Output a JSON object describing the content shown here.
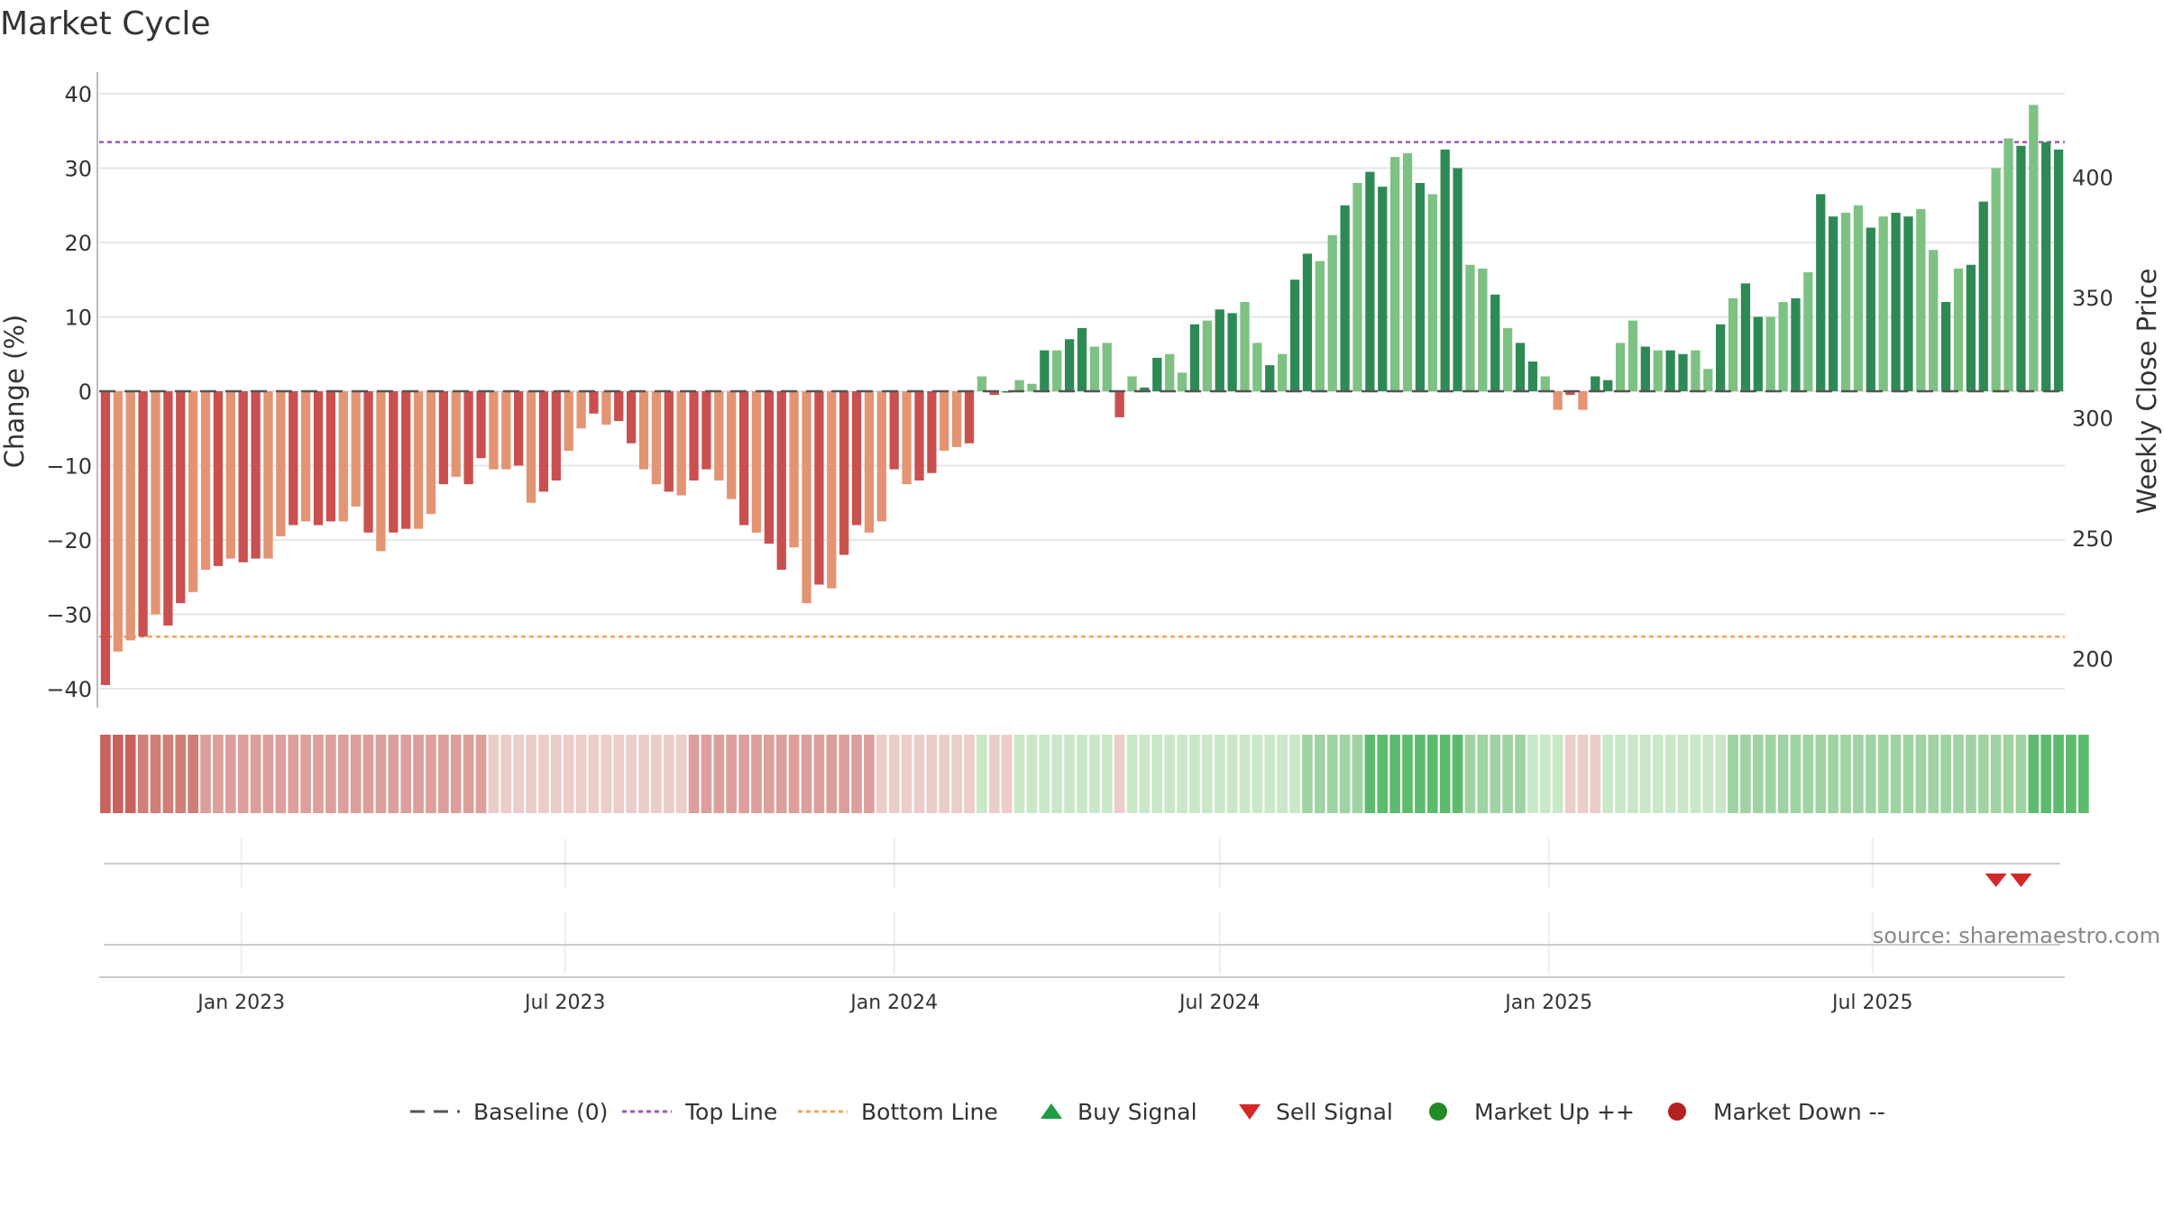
{
  "title": "Market Cycle",
  "source": "source: sharemaestro.com",
  "chart_data": {
    "type": "bar",
    "y_left_label": "Change (%)",
    "y_right_label": "Weekly Close Price",
    "y_left_ticks": [
      "40",
      "30",
      "20",
      "10",
      "0",
      "−10",
      "−20",
      "−30",
      "−40"
    ],
    "y_right_ticks": [
      "400",
      "350",
      "300",
      "250",
      "200"
    ],
    "x_ticks": [
      "Jan 2023",
      "Jul 2023",
      "Jan 2024",
      "Jul 2024",
      "Jan 2025",
      "Jul 2025"
    ],
    "ylim_left": [
      -41.5,
      42.5
    ],
    "ylim_right": [
      170,
      425
    ],
    "top_line": 33.5,
    "bottom_line": -33.0,
    "baseline": 0,
    "x_start": "2022-10-17",
    "x_step_days": 7,
    "values": [
      -39.5,
      -35,
      -33.5,
      -33,
      -30,
      -31.5,
      -28.5,
      -27,
      -24,
      -23.5,
      -22.5,
      -23,
      -22.5,
      -22.5,
      -19.5,
      -18,
      -17.5,
      -18,
      -17.5,
      -17.5,
      -15.5,
      -19,
      -21.5,
      -19,
      -18.5,
      -18.5,
      -16.5,
      -12.5,
      -11.5,
      -12.5,
      -9,
      -10.5,
      -10.5,
      -10,
      -15,
      -13.5,
      -12,
      -8,
      -5,
      -3,
      -4.5,
      -4,
      -7,
      -10.5,
      -12.5,
      -13.5,
      -14,
      -12,
      -10.5,
      -12,
      -14.5,
      -18,
      -19,
      -20.5,
      -24,
      -21,
      -28.5,
      -26,
      -26.5,
      -22,
      -18,
      -19,
      -17.5,
      -10.5,
      -12.5,
      -12,
      -11,
      -8,
      -7.5,
      -7,
      2,
      -0.5,
      0,
      1.5,
      1,
      5.5,
      5.5,
      7,
      8.5,
      6,
      6.5,
      -3.5,
      2,
      0.5,
      4.5,
      5,
      2.5,
      9,
      9.5,
      11,
      10.5,
      12,
      6.5,
      3.5,
      5,
      15,
      18.5,
      17.5,
      21,
      25,
      28,
      29.5,
      27.5,
      31.5,
      32,
      28,
      26.5,
      32.5,
      30,
      17,
      16.5,
      13,
      8.5,
      6.5,
      4,
      2,
      -2.5,
      -0.5,
      -2.5,
      2,
      1.5,
      6.5,
      9.5,
      6,
      5.5,
      5.5,
      5,
      5.5,
      3,
      9,
      12.5,
      14.5,
      10,
      10,
      12,
      12.5,
      16,
      26.5,
      23.5,
      24,
      25,
      22,
      23.5,
      24,
      23.5,
      24.5,
      19,
      12,
      16.5,
      17,
      25.5,
      30,
      34,
      33,
      38.5,
      33.5,
      32.5
    ],
    "ratings": [
      -4,
      -4,
      -4,
      -3,
      -3,
      -3,
      -3,
      -3,
      -2,
      -2,
      -2,
      -2,
      -2,
      -2,
      -2,
      -2,
      -2,
      -2,
      -2,
      -2,
      -2,
      -2,
      -2,
      -2,
      -2,
      -2,
      -2,
      -2,
      -2,
      -2,
      -2,
      -1,
      -1,
      -1,
      -1,
      -1,
      -1,
      -1,
      -1,
      -1,
      -1,
      -1,
      -1,
      -1,
      -1,
      -1,
      -1,
      -2,
      -2,
      -2,
      -2,
      -2,
      -2,
      -2,
      -2,
      -2,
      -2,
      -2,
      -2,
      -2,
      -2,
      -2,
      -1,
      -1,
      -1,
      -1,
      -1,
      -1,
      -1,
      -1,
      1,
      -1,
      -1,
      1,
      1,
      1,
      1,
      1,
      1,
      1,
      1,
      -1,
      1,
      1,
      1,
      1,
      1,
      1,
      1,
      1,
      1,
      1,
      1,
      1,
      1,
      1,
      2,
      2,
      2,
      2,
      2,
      3,
      3,
      3,
      3,
      3,
      3,
      3,
      3,
      2,
      2,
      2,
      2,
      2,
      1,
      1,
      1,
      -1,
      -1,
      -1,
      1,
      1,
      1,
      1,
      1,
      1,
      1,
      1,
      1,
      1,
      2,
      2,
      2,
      2,
      2,
      2,
      2,
      2,
      2,
      2,
      2,
      2,
      2,
      2,
      2,
      2,
      2,
      2,
      2,
      2,
      2,
      2,
      2,
      2,
      3,
      3,
      3,
      3,
      3
    ],
    "sell_signals": [
      "2025-09-08",
      "2025-09-22"
    ],
    "buy_signals": [],
    "colors": {
      "red_dark": "#c9504f",
      "red_light": "#e39473",
      "green_dark": "#2e8a55",
      "green_light": "#7dc183",
      "top_line": "#9b59b6",
      "bottom_line": "#f0a35e",
      "baseline": "#555555",
      "sell": "#d62728",
      "buy": "#1a9e3f",
      "market_up": "#228b22",
      "market_down": "#b22222"
    }
  },
  "legend": [
    {
      "label": "Baseline (0)",
      "marker": "dash-line",
      "color": "#555555"
    },
    {
      "label": "Top Line",
      "marker": "dot-line",
      "color": "#9b59b6"
    },
    {
      "label": "Bottom Line",
      "marker": "dot-line",
      "color": "#f0a35e"
    },
    {
      "label": "Buy Signal",
      "marker": "triangle-up",
      "color": "#1a9e3f"
    },
    {
      "label": "Sell Signal",
      "marker": "triangle-down",
      "color": "#d62728"
    },
    {
      "label": "Market Up ++",
      "marker": "circle",
      "color": "#228b22"
    },
    {
      "label": "Market Down --",
      "marker": "circle",
      "color": "#b22222"
    }
  ]
}
